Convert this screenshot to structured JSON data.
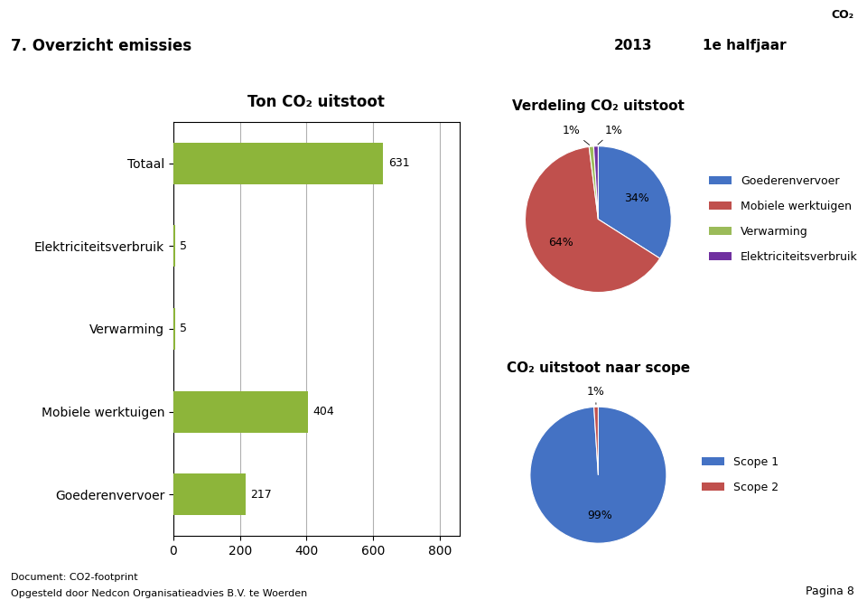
{
  "title": "7. Overzicht emissies",
  "annotations": [
    "2013",
    "1e halfjaar",
    "CO₂",
    "Document: CO2-footprint",
    "Opgesteld door Nedcon Organisatieadvies B.V. te Woerden",
    "Pagina 8"
  ],
  "chart_data": [
    {
      "type": "bar",
      "orientation": "horizontal",
      "title": "Ton CO₂ uitstoot",
      "categories": [
        "Totaal",
        "Elektriciteitsverbruik",
        "Verwarming",
        "Mobiele werktuigen",
        "Goederenvervoer"
      ],
      "values": [
        631,
        5,
        5,
        404,
        217
      ],
      "color": "#8db53a",
      "xlim": [
        0,
        860
      ],
      "xticks": [
        0,
        200,
        400,
        600,
        800
      ],
      "grid": true,
      "data_labels": true
    },
    {
      "type": "pie",
      "title": "Verdeling CO₂ uitstoot",
      "categories": [
        "Goederenvervoer",
        "Mobiele werktuigen",
        "Verwarming",
        "Elektriciteitsverbruik"
      ],
      "values": [
        34,
        64,
        1,
        1
      ],
      "value_labels": [
        "34%",
        "64%",
        "1%",
        "1%"
      ],
      "colors": [
        "#4472c4",
        "#c0504d",
        "#9bbb59",
        "#7030a0"
      ],
      "legend": "center left",
      "data_labels": true
    },
    {
      "type": "pie",
      "title": "CO₂ uitstoot naar scope",
      "categories": [
        "Scope 1",
        "Scope 2"
      ],
      "values": [
        99,
        1
      ],
      "value_labels": [
        "99%",
        "1%"
      ],
      "colors": [
        "#4472c4",
        "#c0504d"
      ],
      "legend": "center left",
      "data_labels": true
    }
  ]
}
